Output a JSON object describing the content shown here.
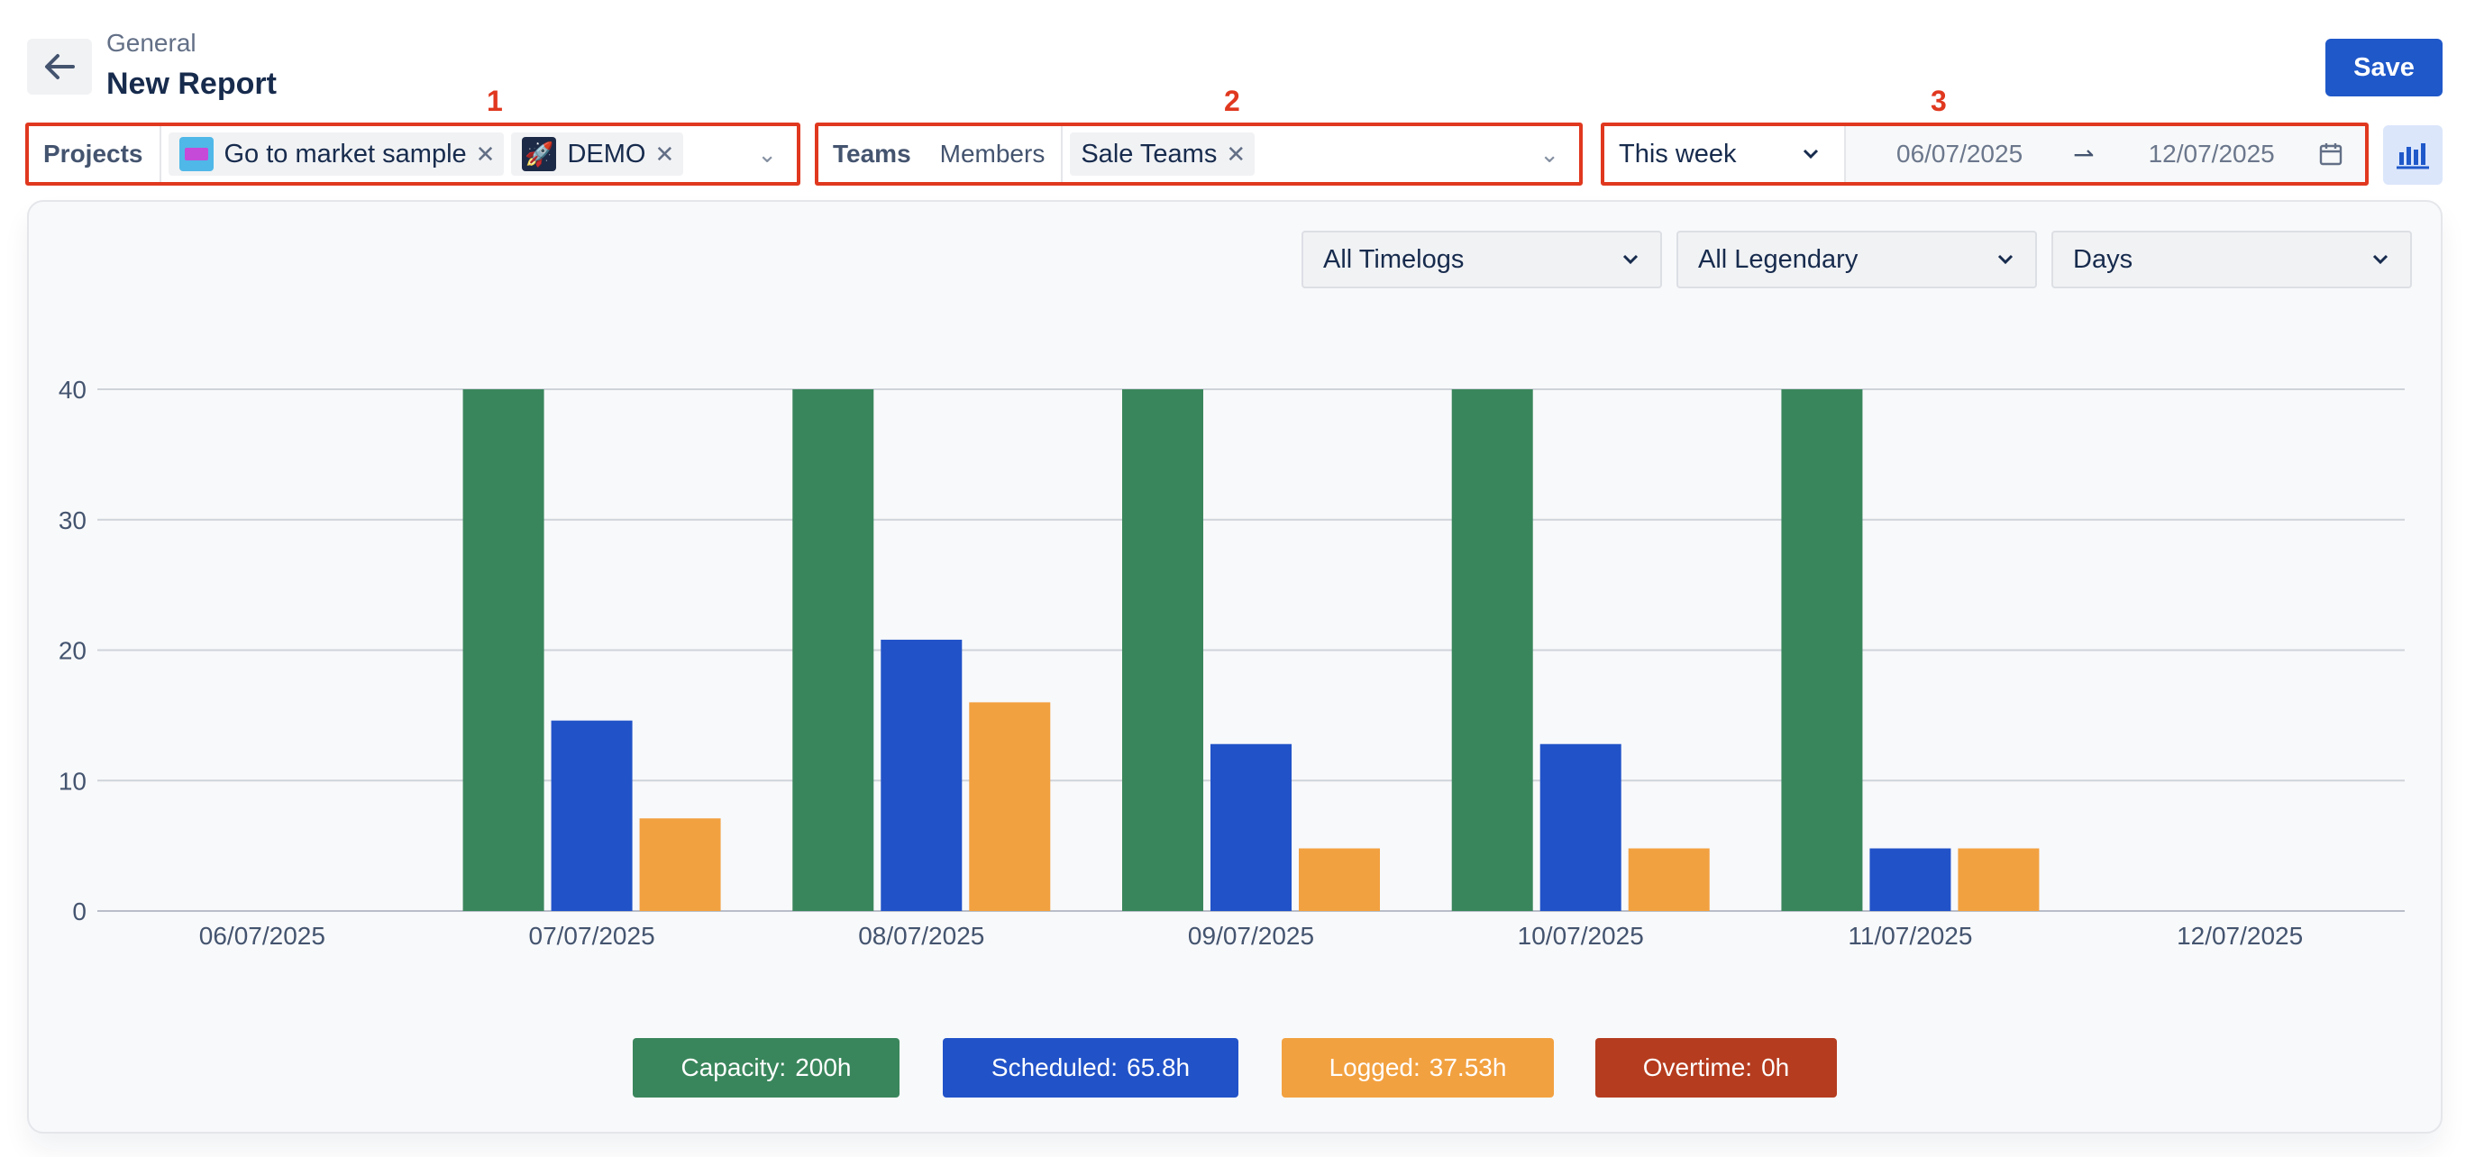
{
  "header": {
    "breadcrumb": "General",
    "title": "New Report",
    "save_label": "Save",
    "back_icon": "arrow-left-icon"
  },
  "callouts": [
    "1",
    "2",
    "3"
  ],
  "projects_filter": {
    "label": "Projects",
    "chips": [
      {
        "label": "Go to market sample",
        "icon": "market-project-icon"
      },
      {
        "label": "DEMO",
        "icon": "rocket-project-icon"
      }
    ]
  },
  "teams_filter": {
    "label": "Teams",
    "tab_members": "Members",
    "chips": [
      {
        "label": "Sale Teams"
      }
    ]
  },
  "date_filter": {
    "period": "This week",
    "start": "06/07/2025",
    "end": "12/07/2025",
    "separator": "⇀"
  },
  "controls": {
    "timelogs": "All Timelogs",
    "legendary": "All Legendary",
    "granularity": "Days"
  },
  "chart_data": {
    "type": "bar",
    "categories": [
      "06/07/2025",
      "07/07/2025",
      "08/07/2025",
      "09/07/2025",
      "10/07/2025",
      "11/07/2025",
      "12/07/2025"
    ],
    "series": [
      {
        "name": "Capacity",
        "color": "#3a865c",
        "values": [
          0,
          40,
          40,
          40,
          40,
          40,
          0
        ]
      },
      {
        "name": "Scheduled",
        "color": "#2152c8",
        "values": [
          0,
          14.6,
          20.8,
          12.8,
          12.8,
          4.8,
          0
        ]
      },
      {
        "name": "Logged",
        "color": "#f2a140",
        "values": [
          0,
          7.1,
          16,
          4.8,
          4.8,
          4.8,
          0
        ]
      }
    ],
    "yticks": [
      "0",
      "10",
      "20",
      "30",
      "40"
    ],
    "ylim": [
      0,
      40
    ],
    "grid": true
  },
  "legend": [
    {
      "name": "Capacity:",
      "value": "200h",
      "color": "#3a865c"
    },
    {
      "name": "Scheduled:",
      "value": "65.8h",
      "color": "#2152c8"
    },
    {
      "name": "Logged:",
      "value": "37.53h",
      "color": "#f2a140"
    },
    {
      "name": "Overtime:",
      "value": "0h",
      "color": "#b53c1f"
    }
  ]
}
